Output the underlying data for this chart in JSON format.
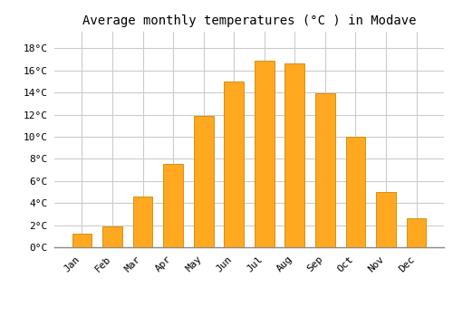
{
  "title": "Average monthly temperatures (°C ) in Modave",
  "months": [
    "Jan",
    "Feb",
    "Mar",
    "Apr",
    "May",
    "Jun",
    "Jul",
    "Aug",
    "Sep",
    "Oct",
    "Nov",
    "Dec"
  ],
  "values": [
    1.2,
    1.9,
    4.6,
    7.5,
    11.9,
    15.0,
    16.9,
    16.6,
    13.9,
    10.0,
    5.0,
    2.6
  ],
  "bar_color": "#FFA820",
  "bar_edge_color": "#CC8800",
  "background_color": "#FFFFFF",
  "grid_color": "#CCCCCC",
  "ytick_labels": [
    "0°C",
    "2°C",
    "4°C",
    "6°C",
    "8°C",
    "10°C",
    "12°C",
    "14°C",
    "16°C",
    "18°C"
  ],
  "ytick_values": [
    0,
    2,
    4,
    6,
    8,
    10,
    12,
    14,
    16,
    18
  ],
  "ylim": [
    0,
    19.5
  ],
  "title_fontsize": 10,
  "tick_fontsize": 8,
  "font_family": "monospace",
  "bar_width": 0.65
}
